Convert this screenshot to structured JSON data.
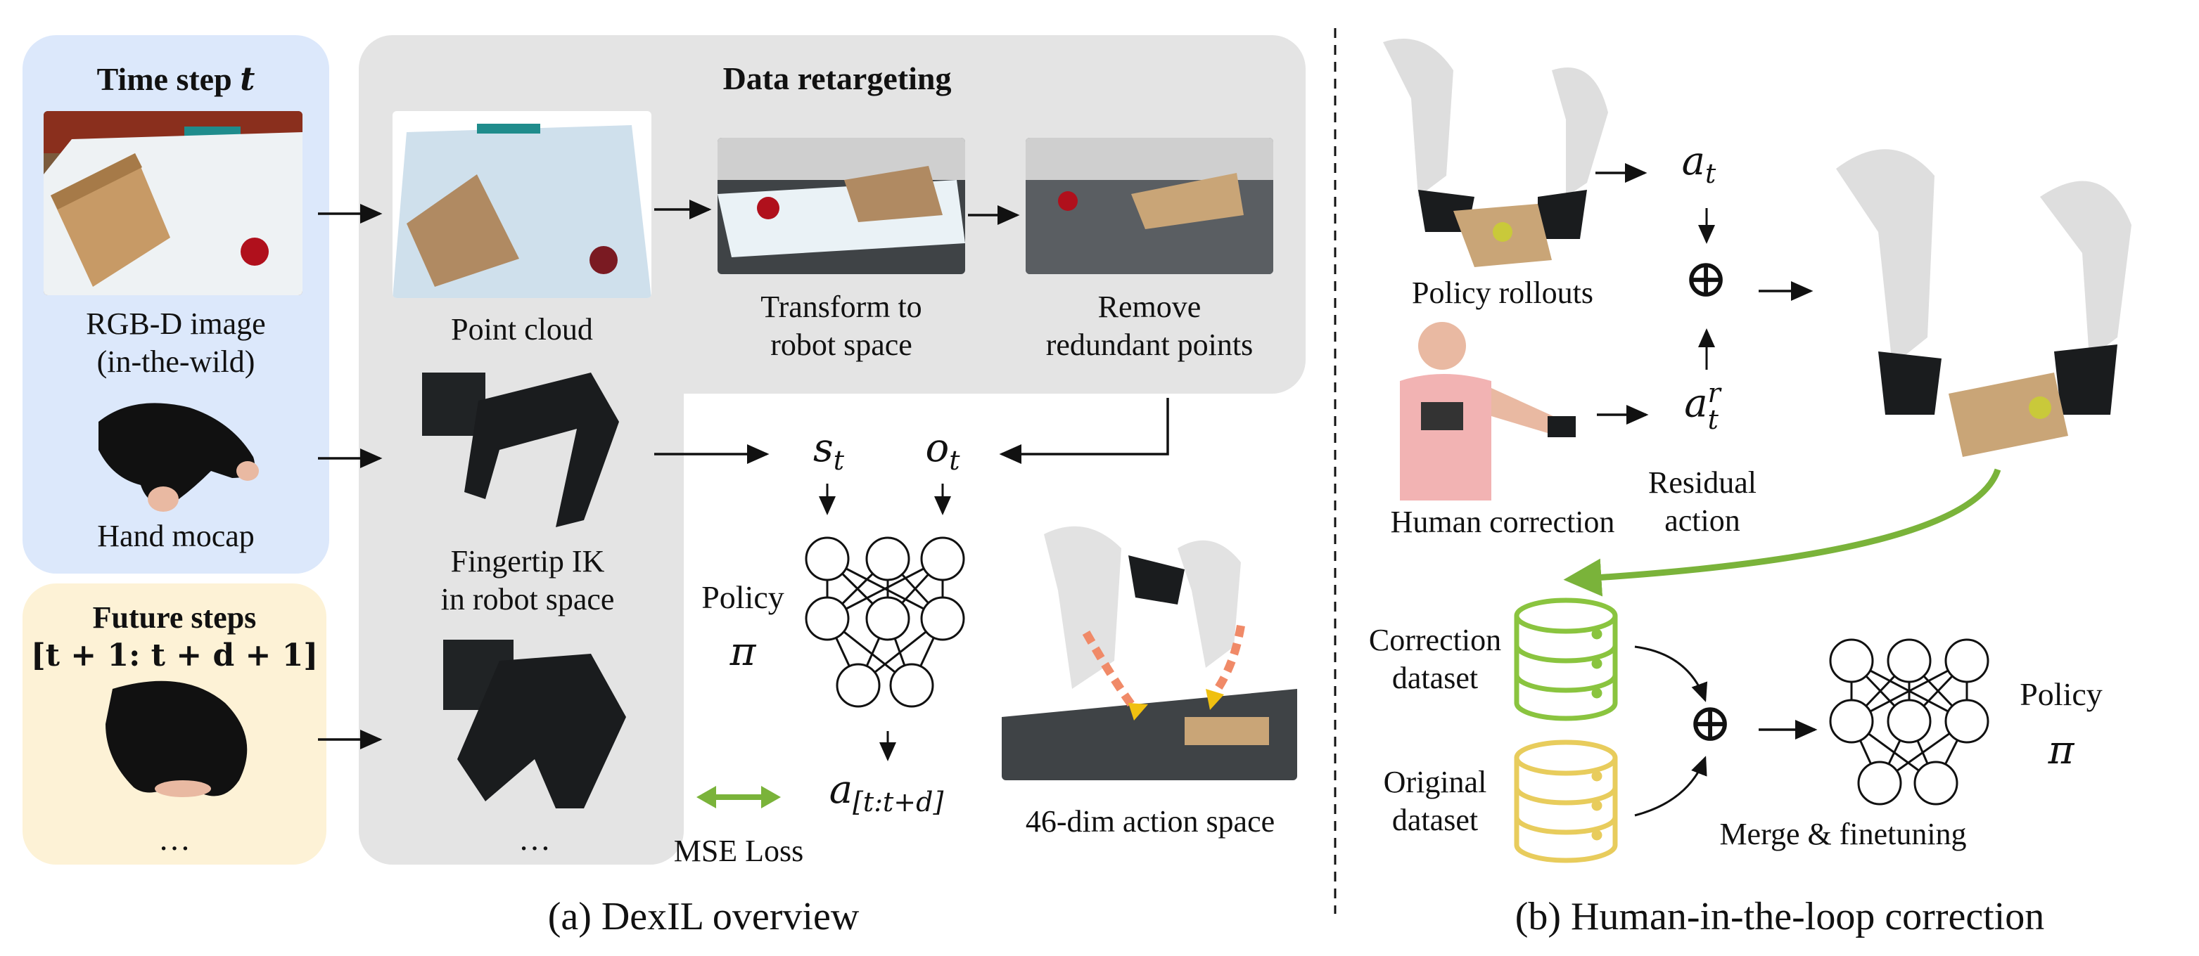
{
  "colors": {
    "time_panel": "#dce8fb",
    "future_panel": "#fdf2d6",
    "retarget_panel": "#e4e4e4",
    "mse_arrow": "#7ab33a",
    "feedback_arrow": "#7ab33a",
    "correction_db": "#8ac43f",
    "original_db": "#e8cc5c",
    "arrow": "#111111"
  },
  "part_a": {
    "time_step": {
      "title": "Time step ",
      "title_var": "t"
    },
    "rgbd_label": "RGB-D image\n(in-the-wild)",
    "hand_mocap_label": "Hand mocap",
    "future": {
      "title": "Future steps",
      "range": "[t + 1: t + d + 1]",
      "ellipsis": "…"
    },
    "retargeting_title": "Data retargeting",
    "point_cloud_label": "Point cloud",
    "transform_label": "Transform to\nrobot space",
    "remove_label": "Remove\nredundant points",
    "fingertip_label": "Fingertip IK\nin robot space",
    "robot_ellipsis": "…",
    "state_label": "s",
    "state_sub": "t",
    "obs_label": "o",
    "obs_sub": "t",
    "policy_label": "Policy",
    "policy_symbol": "π",
    "action_label": "a",
    "action_sub": "[t:t+d]",
    "mse_label": "MSE Loss",
    "action_space_label": "46-dim action space",
    "caption": "(a) DexIL overview"
  },
  "part_b": {
    "policy_rollouts_label": "Policy rollouts",
    "human_correction_label": "Human correction",
    "action_label": "a",
    "action_sub": "t",
    "residual_label": "a",
    "residual_sup": "r",
    "residual_sub": "t",
    "residual_text": "Residual\naction",
    "plus_symbol": "⊕",
    "correction_dataset_label": "Correction\ndataset",
    "original_dataset_label": "Original\ndataset",
    "merge_label": "Merge & finetuning",
    "policy_label": "Policy",
    "policy_symbol": "π",
    "caption": "(b) Human-in-the-loop correction"
  }
}
